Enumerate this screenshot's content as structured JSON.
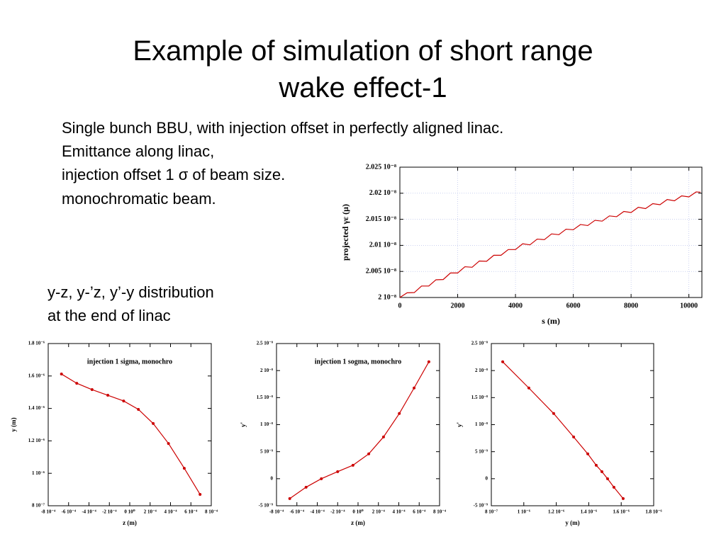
{
  "title": [
    "Example of simulation of short range",
    "wake effect-1"
  ],
  "description": [
    "Single bunch BBU, with injection offset in perfectly aligned linac.",
    "Emittance along linac,",
    "injection offset 1 σ of beam size.",
    "monochromatic beam."
  ],
  "caption": [
    "y-z, y-’z, y’-y distribution",
    "at the end of linac"
  ],
  "chart_data": [
    {
      "type": "line",
      "xlabel": "s (m)",
      "ylabel": "projected γε (μ)",
      "color": "#cc0000",
      "grid": true,
      "markers": false,
      "x": [
        0,
        250,
        500,
        750,
        1000,
        1250,
        1500,
        1750,
        2000,
        2250,
        2500,
        2750,
        3000,
        3250,
        3500,
        3750,
        4000,
        4250,
        4500,
        4750,
        5000,
        5250,
        5500,
        5750,
        6000,
        6250,
        6500,
        6750,
        7000,
        7250,
        7500,
        7750,
        8000,
        8250,
        8500,
        8750,
        9000,
        9250,
        9500,
        9750,
        10000,
        10250,
        10400
      ],
      "values": [
        2e-08,
        2.0009e-08,
        2.00095e-08,
        2.0022e-08,
        2.0022e-08,
        2.0034e-08,
        2.00345e-08,
        2.0047e-08,
        2.0047e-08,
        2.0059e-08,
        2.0058e-08,
        2.007e-08,
        2.00695e-08,
        2.0081e-08,
        2.0081e-08,
        2.0092e-08,
        2.0092e-08,
        2.0103e-08,
        2.0101e-08,
        2.0112e-08,
        2.0111e-08,
        2.0122e-08,
        2.01205e-08,
        2.0131e-08,
        2.013e-08,
        2.014e-08,
        2.0138e-08,
        2.0148e-08,
        2.01465e-08,
        2.01565e-08,
        2.0155e-08,
        2.0165e-08,
        2.0163e-08,
        2.0173e-08,
        2.01705e-08,
        2.018e-08,
        2.0178e-08,
        2.0188e-08,
        2.01855e-08,
        2.0195e-08,
        2.0193e-08,
        2.02025e-08,
        2.0202e-08
      ],
      "xlim": [
        0,
        10450
      ],
      "xticks": [
        0,
        2000,
        4000,
        6000,
        8000,
        10000
      ],
      "ylim": [
        2e-08,
        2.025e-08
      ],
      "yticks": [
        {
          "value": 2e-08,
          "label": "2 10⁻⁸"
        },
        {
          "value": 2.005e-08,
          "label": "2.005 10⁻⁸"
        },
        {
          "value": 2.01e-08,
          "label": "2.01 10⁻⁸"
        },
        {
          "value": 2.015e-08,
          "label": "2.015 10⁻⁸"
        },
        {
          "value": 2.02e-08,
          "label": "2.02 10⁻⁸"
        },
        {
          "value": 2.025e-08,
          "label": "2.025 10⁻⁸"
        }
      ]
    },
    {
      "type": "line",
      "annotation": "injection 1 sigma, monochro",
      "xlabel": "z (m)",
      "ylabel": "y (m)",
      "color": "#cc0000",
      "grid": false,
      "markers": true,
      "x": [
        -0.00067,
        -0.00052,
        -0.00037,
        -0.000215,
        -6e-05,
        8.5e-05,
        0.00023,
        0.00038,
        0.000535,
        0.00069
      ],
      "values": [
        1.612e-06,
        1.555e-06,
        1.516e-06,
        1.481e-06,
        1.446e-06,
        1.394e-06,
        1.307e-06,
        1.184e-06,
        1.031e-06,
        8.7e-07
      ],
      "xlim": [
        -0.0008,
        0.0008
      ],
      "xticks": [
        {
          "value": -0.0008,
          "label": "-8 10⁻⁴"
        },
        {
          "value": -0.0006,
          "label": "-6 10⁻⁴"
        },
        {
          "value": -0.0004,
          "label": "-4 10⁻⁴"
        },
        {
          "value": -0.0002,
          "label": "-2 10⁻⁴"
        },
        {
          "value": 0,
          "label": "0 10⁰"
        },
        {
          "value": 0.0002,
          "label": "2 10⁻⁴"
        },
        {
          "value": 0.0004,
          "label": "4 10⁻⁴"
        },
        {
          "value": 0.0006,
          "label": "6 10⁻⁴"
        },
        {
          "value": 0.0008,
          "label": "8 10⁻⁴"
        }
      ],
      "ylim": [
        8e-07,
        1.8e-06
      ],
      "yticks": [
        {
          "value": 8e-07,
          "label": "8 10⁻⁷"
        },
        {
          "value": 1e-06,
          "label": "1 10⁻⁶"
        },
        {
          "value": 1.2e-06,
          "label": "1.2 10⁻⁶"
        },
        {
          "value": 1.4e-06,
          "label": "1.4 10⁻⁶"
        },
        {
          "value": 1.6e-06,
          "label": "1.6 10⁻⁶"
        },
        {
          "value": 1.8e-06,
          "label": "1.8 10⁻⁶"
        }
      ]
    },
    {
      "type": "line",
      "annotation": "injection 1 sogma, monochro",
      "xlabel": "z (m)",
      "ylabel": "y'",
      "color": "#cc0000",
      "grid": false,
      "markers": true,
      "x": [
        -0.00067,
        -0.00051,
        -0.00036,
        -0.0002,
        -5e-05,
        0.000105,
        0.00025,
        0.000405,
        0.00055,
        0.000695
      ],
      "values": [
        -3.67e-09,
        -1.57e-09,
        0,
        1.31e-09,
        2.49e-09,
        4.59e-09,
        7.73e-09,
        1.206e-08,
        1.678e-08,
        2.162e-08
      ],
      "xlim": [
        -0.0008,
        0.0008
      ],
      "xticks": [
        {
          "value": -0.0008,
          "label": "-8 10⁻⁴"
        },
        {
          "value": -0.0006,
          "label": "-6 10⁻⁴"
        },
        {
          "value": -0.0004,
          "label": "-4 10⁻⁴"
        },
        {
          "value": -0.0002,
          "label": "-2 10⁻⁴"
        },
        {
          "value": 0,
          "label": "0 10⁰"
        },
        {
          "value": 0.0002,
          "label": "2 10⁻⁴"
        },
        {
          "value": 0.0004,
          "label": "4 10⁻⁴"
        },
        {
          "value": 0.0006,
          "label": "6 10⁻⁴"
        },
        {
          "value": 0.0008,
          "label": "8 10⁻⁴"
        }
      ],
      "ylim": [
        -5e-09,
        2.5e-08
      ],
      "yticks": [
        {
          "value": -5e-09,
          "label": "-5 10⁻⁹"
        },
        0,
        {
          "value": 5e-09,
          "label": "5 10⁻⁹"
        },
        {
          "value": 1e-08,
          "label": "1 10⁻⁸"
        },
        {
          "value": 1.5e-08,
          "label": "1.5 10⁻⁸"
        },
        {
          "value": 2e-08,
          "label": "2 10⁻⁸"
        },
        {
          "value": 2.5e-08,
          "label": "2.5 10⁻⁸"
        }
      ]
    },
    {
      "type": "line",
      "xlabel": "y (m)",
      "ylabel": "y'",
      "color": "#cc0000",
      "grid": false,
      "markers": true,
      "x": [
        8.7e-07,
        1.031e-06,
        1.184e-06,
        1.307e-06,
        1.394e-06,
        1.446e-06,
        1.481e-06,
        1.516e-06,
        1.555e-06,
        1.612e-06
      ],
      "values": [
        2.162e-08,
        1.678e-08,
        1.206e-08,
        7.73e-09,
        4.59e-09,
        2.49e-09,
        1.31e-09,
        0,
        -1.57e-09,
        -3.67e-09
      ],
      "xlim": [
        8e-07,
        1.8e-06
      ],
      "xticks": [
        {
          "value": 8e-07,
          "label": "8 10⁻⁷"
        },
        {
          "value": 1e-06,
          "label": "1 10⁻⁶"
        },
        {
          "value": 1.2e-06,
          "label": "1.2 10⁻⁶"
        },
        {
          "value": 1.4e-06,
          "label": "1.4 10⁻⁶"
        },
        {
          "value": 1.6e-06,
          "label": "1.6 10⁻⁶"
        },
        {
          "value": 1.8e-06,
          "label": "1.8 10⁻⁶"
        }
      ],
      "ylim": [
        -5e-09,
        2.5e-08
      ],
      "yticks": [
        {
          "value": -5e-09,
          "label": "-5 10⁻⁹"
        },
        0,
        {
          "value": 5e-09,
          "label": "5 10⁻⁹"
        },
        {
          "value": 1e-08,
          "label": "1 10⁻⁸"
        },
        {
          "value": 1.5e-08,
          "label": "1.5 10⁻⁸"
        },
        {
          "value": 2e-08,
          "label": "2 10⁻⁸"
        },
        {
          "value": 2.5e-08,
          "label": "2.5 10⁻⁸"
        }
      ]
    }
  ]
}
